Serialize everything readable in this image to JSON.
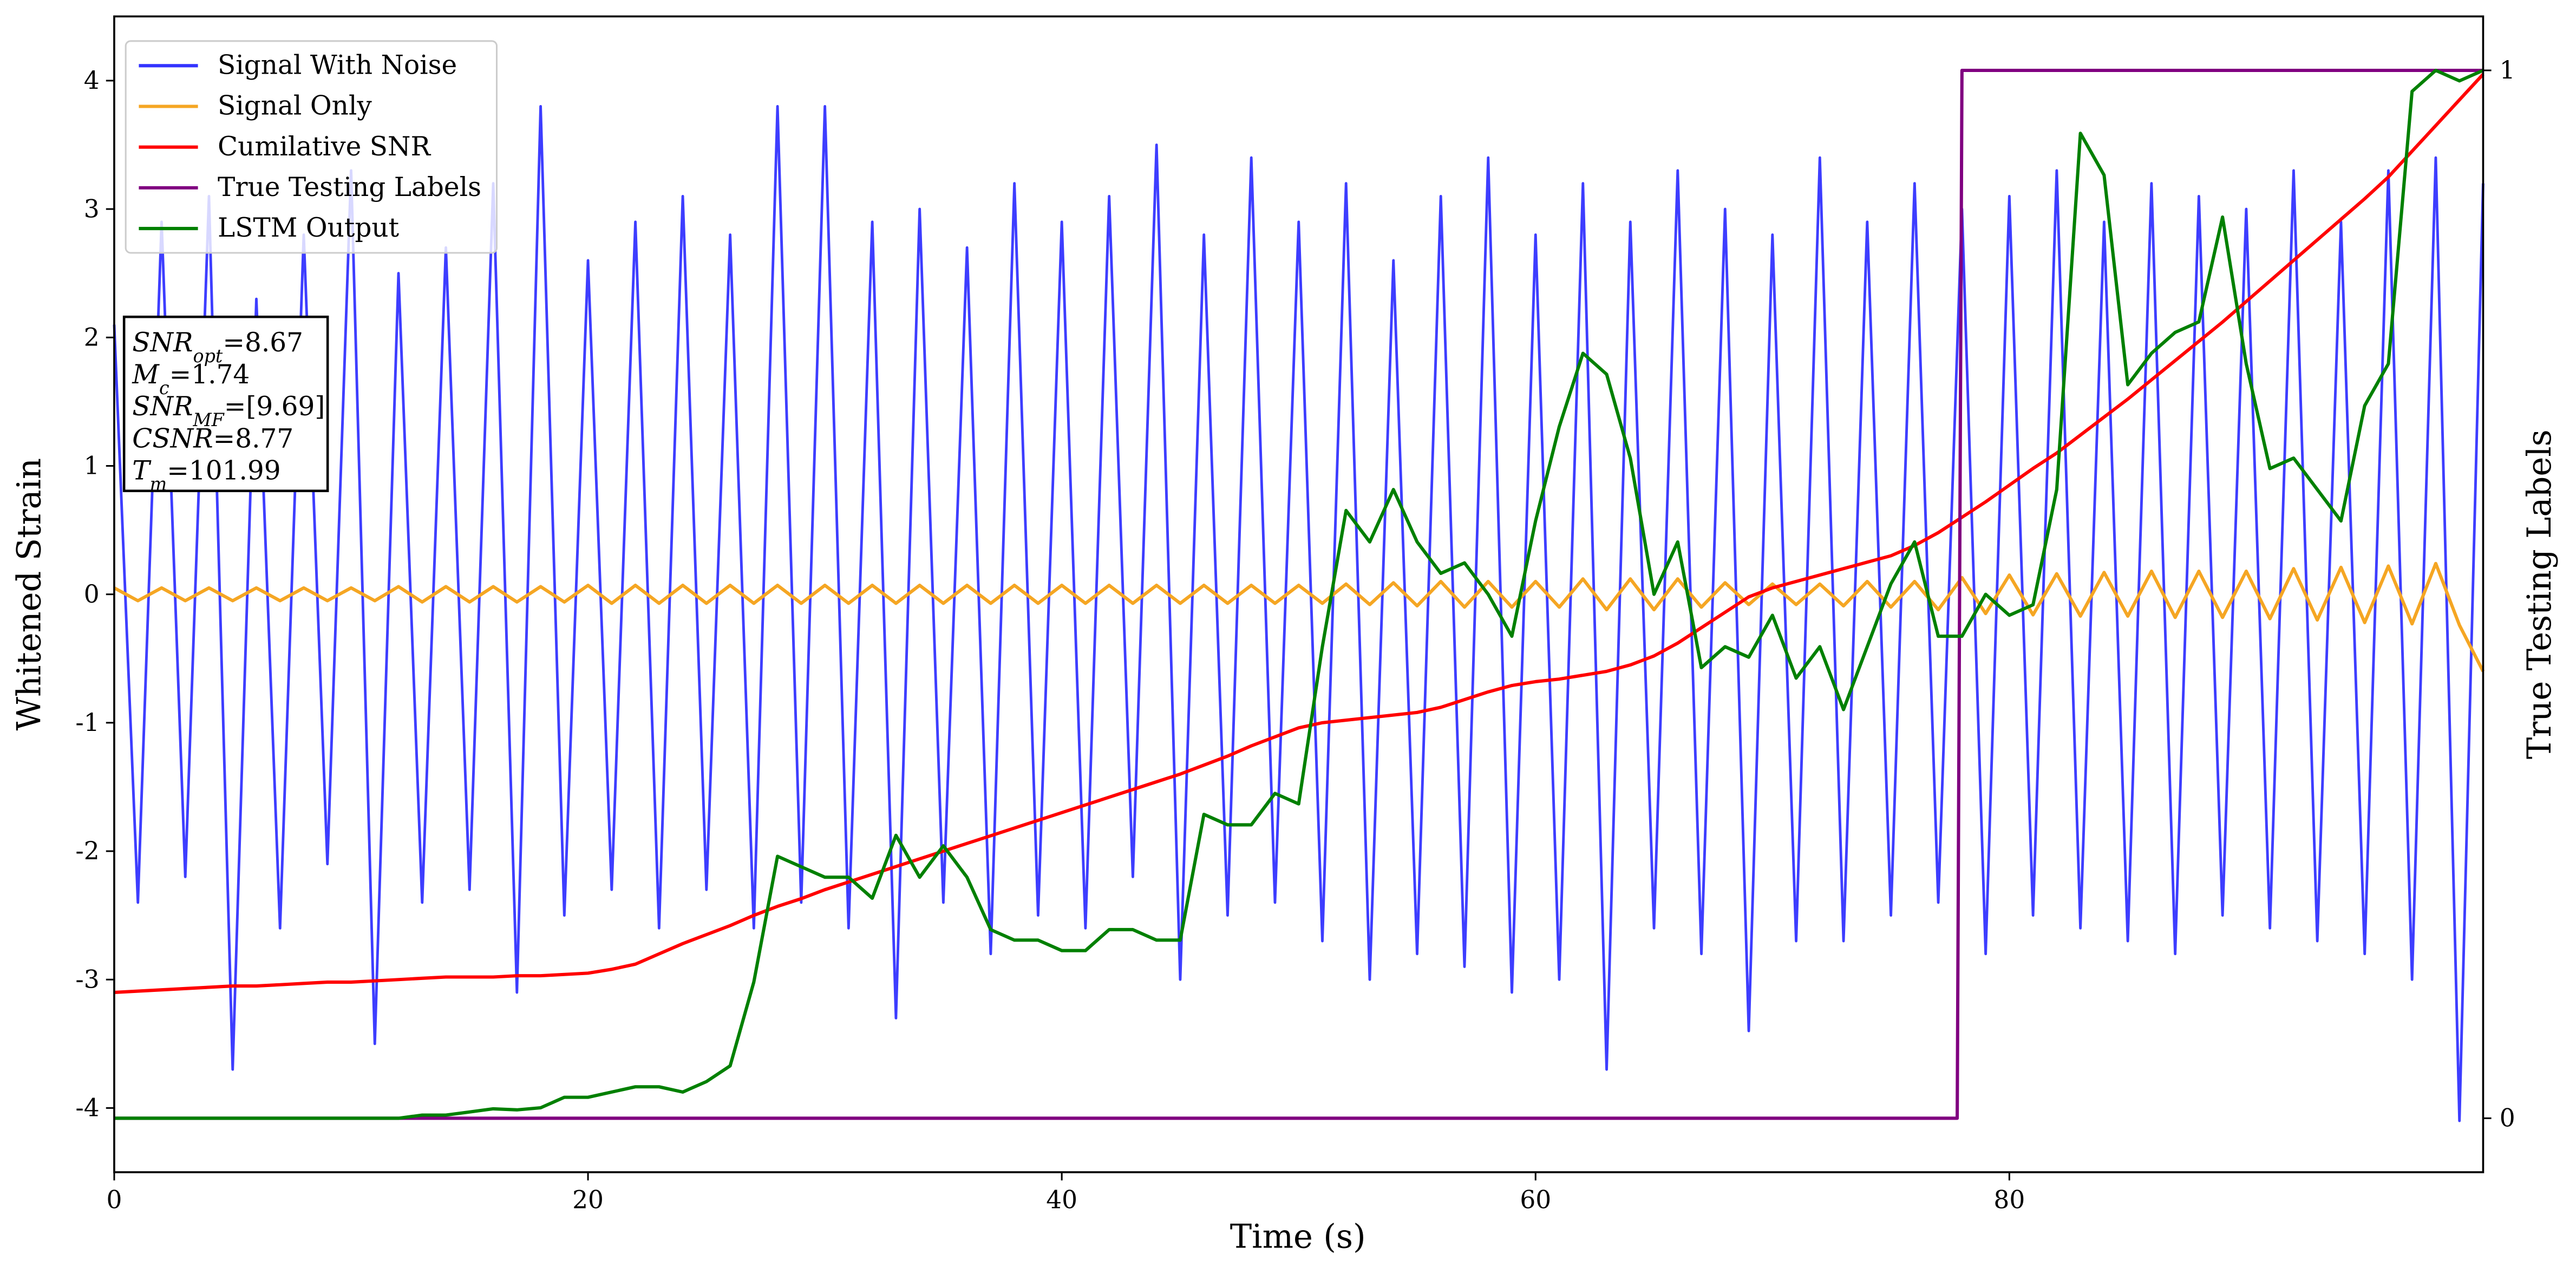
{
  "chart_data": {
    "type": "line",
    "xlabel": "Time (s)",
    "ylabel": "Whitened Strain",
    "y2label": "True Testing Labels",
    "xlim": [
      0,
      100
    ],
    "ylim": [
      -4.5,
      4.5
    ],
    "y2lim": [
      -0.0515,
      1.0515
    ],
    "xticks": [
      0,
      20,
      40,
      60,
      80
    ],
    "yticks": [
      -4,
      -3,
      -2,
      -1,
      0,
      1,
      2,
      3,
      4
    ],
    "y2ticks": [
      0,
      1
    ],
    "legend": "upper left",
    "grid": false,
    "x": [
      0,
      1,
      2,
      3,
      4,
      5,
      6,
      7,
      8,
      9,
      10,
      11,
      12,
      13,
      14,
      15,
      16,
      17,
      18,
      19,
      20,
      21,
      22,
      23,
      24,
      25,
      26,
      27,
      28,
      29,
      30,
      31,
      32,
      33,
      34,
      35,
      36,
      37,
      38,
      39,
      40,
      41,
      42,
      43,
      44,
      45,
      46,
      47,
      48,
      49,
      50,
      51,
      52,
      53,
      54,
      55,
      56,
      57,
      58,
      59,
      60,
      61,
      62,
      63,
      64,
      65,
      66,
      67,
      68,
      69,
      70,
      71,
      72,
      73,
      74,
      75,
      76,
      77,
      78,
      79,
      80,
      81,
      82,
      83,
      84,
      85,
      86,
      87,
      88,
      89,
      90,
      91,
      92,
      93,
      94,
      95,
      96,
      97,
      98,
      99,
      100
    ],
    "series": [
      {
        "name": "Signal With Noise",
        "color": "#3333ff",
        "values": [
          2.1,
          -2.4,
          2.9,
          -2.2,
          3.1,
          -3.7,
          2.3,
          -2.6,
          2.8,
          -2.1,
          3.3,
          -3.5,
          2.5,
          -2.4,
          2.7,
          -2.3,
          3.2,
          -3.1,
          3.8,
          -2.5,
          2.6,
          -2.3,
          2.9,
          -2.6,
          3.1,
          -2.3,
          2.8,
          -2.6,
          3.8,
          -2.4,
          3.8,
          -2.6,
          2.9,
          -3.3,
          3.0,
          -2.4,
          2.7,
          -2.8,
          3.2,
          -2.5,
          2.9,
          -2.6,
          3.1,
          -2.2,
          3.5,
          -3.0,
          2.8,
          -2.5,
          3.4,
          -2.4,
          2.9,
          -2.7,
          3.2,
          -3.0,
          2.6,
          -2.8,
          3.1,
          -2.9,
          3.4,
          -3.1,
          2.8,
          -3.0,
          3.2,
          -3.7,
          2.9,
          -2.6,
          3.3,
          -2.8,
          3.0,
          -3.4,
          2.8,
          -2.7,
          3.4,
          -2.7,
          2.9,
          -2.5,
          3.2,
          -2.4,
          3.0,
          -2.8,
          3.1,
          -2.5,
          3.3,
          -2.6,
          2.9,
          -2.7,
          3.2,
          -2.8,
          3.1,
          -2.5,
          3.0,
          -2.6,
          3.3,
          -2.7,
          2.9,
          -2.8,
          3.3,
          -3.0,
          3.4,
          -4.1,
          3.2
        ]
      },
      {
        "name": "Signal Only",
        "color": "#f5a623",
        "values": [
          0.05,
          -0.05,
          0.05,
          -0.05,
          0.05,
          -0.05,
          0.05,
          -0.05,
          0.05,
          -0.05,
          0.05,
          -0.05,
          0.06,
          -0.06,
          0.06,
          -0.06,
          0.06,
          -0.06,
          0.06,
          -0.06,
          0.07,
          -0.07,
          0.07,
          -0.07,
          0.07,
          -0.07,
          0.07,
          -0.07,
          0.07,
          -0.07,
          0.07,
          -0.07,
          0.07,
          -0.07,
          0.07,
          -0.07,
          0.07,
          -0.07,
          0.07,
          -0.07,
          0.07,
          -0.07,
          0.07,
          -0.07,
          0.07,
          -0.07,
          0.07,
          -0.07,
          0.07,
          -0.07,
          0.07,
          -0.07,
          0.08,
          -0.08,
          0.09,
          -0.09,
          0.1,
          -0.1,
          0.1,
          -0.1,
          0.1,
          -0.1,
          0.12,
          -0.12,
          0.12,
          -0.12,
          0.12,
          -0.1,
          0.09,
          -0.08,
          0.08,
          -0.08,
          0.08,
          -0.09,
          0.1,
          -0.1,
          0.1,
          -0.12,
          0.13,
          -0.15,
          0.15,
          -0.16,
          0.16,
          -0.17,
          0.17,
          -0.17,
          0.18,
          -0.18,
          0.18,
          -0.18,
          0.18,
          -0.19,
          0.2,
          -0.2,
          0.21,
          -0.22,
          0.22,
          -0.23,
          0.24,
          -0.24,
          -0.6
        ]
      },
      {
        "name": "Cumilative SNR",
        "color": "#ff0000",
        "values": [
          -3.1,
          -3.09,
          -3.08,
          -3.07,
          -3.06,
          -3.05,
          -3.05,
          -3.04,
          -3.03,
          -3.02,
          -3.02,
          -3.01,
          -3.0,
          -2.99,
          -2.98,
          -2.98,
          -2.98,
          -2.97,
          -2.97,
          -2.96,
          -2.95,
          -2.92,
          -2.88,
          -2.8,
          -2.72,
          -2.65,
          -2.58,
          -2.5,
          -2.43,
          -2.37,
          -2.3,
          -2.24,
          -2.18,
          -2.12,
          -2.06,
          -2.0,
          -1.94,
          -1.88,
          -1.82,
          -1.76,
          -1.7,
          -1.64,
          -1.58,
          -1.52,
          -1.46,
          -1.4,
          -1.33,
          -1.26,
          -1.18,
          -1.11,
          -1.04,
          -1.0,
          -0.98,
          -0.96,
          -0.94,
          -0.92,
          -0.88,
          -0.82,
          -0.76,
          -0.71,
          -0.68,
          -0.66,
          -0.63,
          -0.6,
          -0.55,
          -0.48,
          -0.38,
          -0.26,
          -0.14,
          -0.02,
          0.05,
          0.1,
          0.15,
          0.2,
          0.25,
          0.3,
          0.38,
          0.48,
          0.6,
          0.72,
          0.85,
          0.98,
          1.1,
          1.24,
          1.38,
          1.52,
          1.67,
          1.82,
          1.97,
          2.12,
          2.28,
          2.44,
          2.6,
          2.76,
          2.92,
          3.08,
          3.25,
          3.45,
          3.65,
          3.85,
          4.05
        ]
      },
      {
        "name": "True Testing Labels",
        "color": "#800080",
        "axis": "y2",
        "x": [
          0,
          77.8,
          78,
          100
        ],
        "values": [
          0,
          0,
          1,
          1
        ]
      },
      {
        "name": "LSTM Output",
        "color": "#008000",
        "axis": "y2",
        "values": [
          0,
          0,
          0,
          0,
          0,
          0,
          0,
          0,
          0,
          0,
          0,
          0,
          0,
          0.003,
          0.003,
          0.006,
          0.009,
          0.008,
          0.01,
          0.02,
          0.02,
          0.025,
          0.03,
          0.03,
          0.025,
          0.035,
          0.05,
          0.13,
          0.25,
          0.24,
          0.23,
          0.23,
          0.21,
          0.27,
          0.23,
          0.26,
          0.23,
          0.18,
          0.17,
          0.17,
          0.16,
          0.16,
          0.18,
          0.18,
          0.17,
          0.17,
          0.29,
          0.28,
          0.28,
          0.31,
          0.3,
          0.45,
          0.58,
          0.55,
          0.6,
          0.55,
          0.52,
          0.53,
          0.5,
          0.46,
          0.57,
          0.66,
          0.73,
          0.71,
          0.63,
          0.5,
          0.55,
          0.43,
          0.45,
          0.44,
          0.48,
          0.42,
          0.45,
          0.39,
          0.45,
          0.51,
          0.55,
          0.46,
          0.46,
          0.5,
          0.48,
          0.49,
          0.6,
          0.94,
          0.9,
          0.7,
          0.73,
          0.75,
          0.76,
          0.86,
          0.72,
          0.62,
          0.63,
          0.6,
          0.57,
          0.68,
          0.72,
          0.98,
          1.0,
          0.99,
          1.0
        ]
      }
    ],
    "annotation": [
      {
        "symbol": "SNR",
        "sub": "opt",
        "text": "=8.67"
      },
      {
        "symbol": "M",
        "sub": "c",
        "text": "=1.74"
      },
      {
        "symbol": "SNR",
        "sub": "MF",
        "text": "=[9.69]"
      },
      {
        "symbol": "CSNR",
        "text": "=8.77"
      },
      {
        "symbol": "T",
        "sub": "m",
        "text": "=101.99"
      }
    ]
  }
}
